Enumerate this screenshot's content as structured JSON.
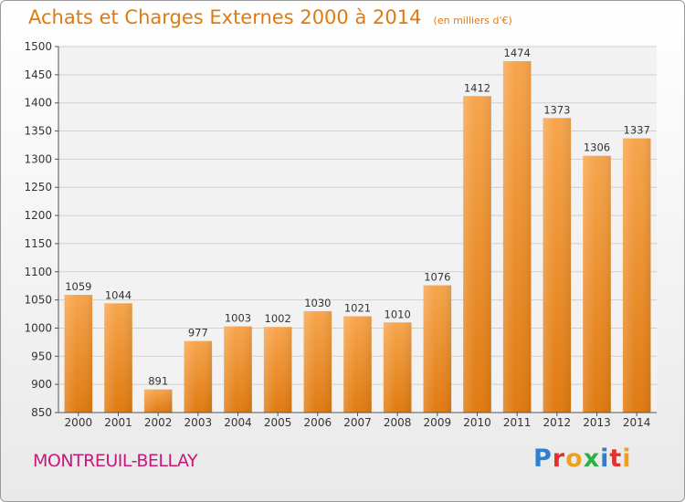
{
  "header": {
    "title": "Achats et Charges Externes 2000 à 2014",
    "subtitle": "(en milliers d'€)"
  },
  "footer": {
    "location": "MONTREUIL-BELLAY",
    "logo_text": "Proxiti",
    "logo_colors": [
      "#2f7fd0",
      "#e0322c",
      "#f0a020",
      "#2fae46",
      "#2f7fd0",
      "#e0322c",
      "#f0a020"
    ]
  },
  "colors": {
    "bar_top": "#f7a54c",
    "bar_bottom": "#e07a10",
    "title": "#e07a10",
    "location": "#c8187a",
    "grid": "#d0d0d0"
  },
  "chart_data": {
    "type": "bar",
    "title": "Achats et Charges Externes 2000 à 2014",
    "subtitle": "(en milliers d'€)",
    "xlabel": "",
    "ylabel": "",
    "categories": [
      "2000",
      "2001",
      "2002",
      "2003",
      "2004",
      "2005",
      "2006",
      "2007",
      "2008",
      "2009",
      "2010",
      "2011",
      "2012",
      "2013",
      "2014"
    ],
    "values": [
      1059,
      1044,
      891,
      977,
      1003,
      1002,
      1030,
      1021,
      1010,
      1076,
      1412,
      1474,
      1373,
      1306,
      1337
    ],
    "ylim": [
      850,
      1500
    ],
    "yticks": [
      850,
      900,
      950,
      1000,
      1050,
      1100,
      1150,
      1200,
      1250,
      1300,
      1350,
      1400,
      1450,
      1500
    ],
    "grid": true,
    "legend": "none"
  }
}
